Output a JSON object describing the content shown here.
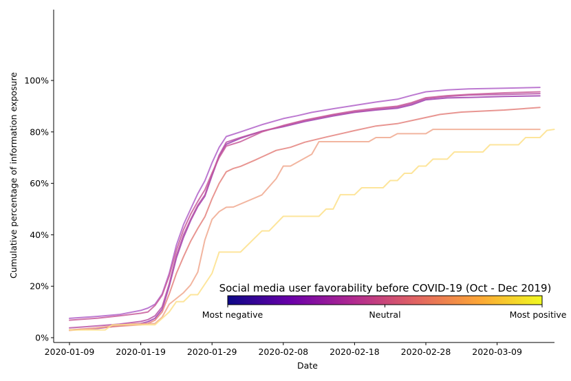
{
  "chart_data": {
    "type": "line",
    "xlabel": "Date",
    "ylabel": "Cumulative percentage of information exposure",
    "x_start": "2020-01-09",
    "x_ticks": [
      "2020-01-09",
      "2020-01-19",
      "2020-01-29",
      "2020-02-08",
      "2020-02-18",
      "2020-02-28",
      "2020-03-09"
    ],
    "y_ticks": [
      "0%",
      "20%",
      "40%",
      "60%",
      "80%",
      "100%"
    ],
    "ylim": [
      0,
      100
    ],
    "grid": false,
    "colorbar": {
      "title": "Social media user favorability before COVID-19 (Oct - Dec 2019)",
      "tick_labels": [
        "Most negative",
        "Neutral",
        "Most positive"
      ],
      "colormap": "plasma",
      "stops": [
        "#0d0887",
        "#6a00a8",
        "#b12a90",
        "#e16462",
        "#fca636",
        "#f0f921"
      ]
    },
    "series": [
      {
        "color": "#b062c9",
        "points": [
          [
            "2020-01-09",
            7.5
          ],
          [
            "2020-01-13",
            8.3
          ],
          [
            "2020-01-16",
            9.0
          ],
          [
            "2020-01-19",
            10.6
          ],
          [
            "2020-01-20",
            11.5
          ],
          [
            "2020-01-21",
            13.0
          ],
          [
            "2020-01-22",
            17.0
          ],
          [
            "2020-01-23",
            25.0
          ],
          [
            "2020-01-24",
            36.0
          ],
          [
            "2020-01-25",
            44.0
          ],
          [
            "2020-01-26",
            50.0
          ],
          [
            "2020-01-27",
            56.0
          ],
          [
            "2020-01-28",
            61.0
          ],
          [
            "2020-01-29",
            68.0
          ],
          [
            "2020-01-30",
            74.0
          ],
          [
            "2020-01-31",
            78.2
          ],
          [
            "2020-02-02",
            80.0
          ],
          [
            "2020-02-05",
            82.8
          ],
          [
            "2020-02-08",
            85.2
          ],
          [
            "2020-02-10",
            86.3
          ],
          [
            "2020-02-12",
            87.6
          ],
          [
            "2020-02-15",
            89.0
          ],
          [
            "2020-02-18",
            90.3
          ],
          [
            "2020-02-21",
            91.6
          ],
          [
            "2020-02-24",
            92.7
          ],
          [
            "2020-02-26",
            94.2
          ],
          [
            "2020-02-28",
            95.6
          ],
          [
            "2020-03-02",
            96.3
          ],
          [
            "2020-03-05",
            96.7
          ],
          [
            "2020-03-10",
            97.0
          ],
          [
            "2020-03-15",
            97.3
          ]
        ]
      },
      {
        "color": "#9e3fb0",
        "points": [
          [
            "2020-01-09",
            3.0
          ],
          [
            "2020-01-13",
            3.6
          ],
          [
            "2020-01-16",
            4.6
          ],
          [
            "2020-01-19",
            5.5
          ],
          [
            "2020-01-20",
            6.2
          ],
          [
            "2020-01-21",
            7.5
          ],
          [
            "2020-01-22",
            11.0
          ],
          [
            "2020-01-23",
            20.0
          ],
          [
            "2020-01-24",
            31.0
          ],
          [
            "2020-01-25",
            39.0
          ],
          [
            "2020-01-26",
            45.5
          ],
          [
            "2020-01-27",
            51.0
          ],
          [
            "2020-01-28",
            55.0
          ],
          [
            "2020-01-29",
            63.0
          ],
          [
            "2020-01-30",
            70.5
          ],
          [
            "2020-01-31",
            75.2
          ],
          [
            "2020-02-02",
            77.5
          ],
          [
            "2020-02-05",
            80.3
          ],
          [
            "2020-02-08",
            82.0
          ],
          [
            "2020-02-11",
            84.0
          ],
          [
            "2020-02-15",
            86.2
          ],
          [
            "2020-02-18",
            87.6
          ],
          [
            "2020-02-21",
            88.5
          ],
          [
            "2020-02-24",
            89.2
          ],
          [
            "2020-02-26",
            90.5
          ],
          [
            "2020-02-28",
            92.5
          ],
          [
            "2020-03-02",
            93.2
          ],
          [
            "2020-03-05",
            93.4
          ],
          [
            "2020-03-10",
            93.8
          ],
          [
            "2020-03-15",
            94.0
          ]
        ]
      },
      {
        "color": "#b854a6",
        "points": [
          [
            "2020-01-09",
            3.8
          ],
          [
            "2020-01-13",
            4.6
          ],
          [
            "2020-01-16",
            5.3
          ],
          [
            "2020-01-19",
            6.3
          ],
          [
            "2020-01-20",
            7.0
          ],
          [
            "2020-01-21",
            8.5
          ],
          [
            "2020-01-22",
            12.0
          ],
          [
            "2020-01-23",
            21.0
          ],
          [
            "2020-01-24",
            32.0
          ],
          [
            "2020-01-25",
            40.0
          ],
          [
            "2020-01-26",
            46.0
          ],
          [
            "2020-01-27",
            51.5
          ],
          [
            "2020-01-28",
            55.5
          ],
          [
            "2020-01-29",
            63.5
          ],
          [
            "2020-01-30",
            71.0
          ],
          [
            "2020-01-31",
            76.0
          ],
          [
            "2020-02-02",
            77.8
          ],
          [
            "2020-02-05",
            80.3
          ],
          [
            "2020-02-08",
            82.3
          ],
          [
            "2020-02-11",
            84.4
          ],
          [
            "2020-02-15",
            86.6
          ],
          [
            "2020-02-18",
            87.8
          ],
          [
            "2020-02-21",
            88.8
          ],
          [
            "2020-02-24",
            89.7
          ],
          [
            "2020-02-26",
            91.0
          ],
          [
            "2020-02-28",
            93.0
          ],
          [
            "2020-03-02",
            93.8
          ],
          [
            "2020-03-05",
            94.3
          ],
          [
            "2020-03-10",
            94.6
          ],
          [
            "2020-03-15",
            94.9
          ]
        ]
      },
      {
        "color": "#c85c9a",
        "points": [
          [
            "2020-01-09",
            6.8
          ],
          [
            "2020-01-13",
            7.6
          ],
          [
            "2020-01-16",
            8.5
          ],
          [
            "2020-01-19",
            9.5
          ],
          [
            "2020-01-20",
            10.0
          ],
          [
            "2020-01-21",
            12.5
          ],
          [
            "2020-01-22",
            16.5
          ],
          [
            "2020-01-23",
            24.0
          ],
          [
            "2020-01-24",
            34.0
          ],
          [
            "2020-01-25",
            42.0
          ],
          [
            "2020-01-26",
            48.0
          ],
          [
            "2020-01-27",
            53.0
          ],
          [
            "2020-01-28",
            57.5
          ],
          [
            "2020-01-29",
            64.0
          ],
          [
            "2020-01-30",
            70.0
          ],
          [
            "2020-01-31",
            74.5
          ],
          [
            "2020-02-02",
            76.2
          ],
          [
            "2020-02-05",
            80.0
          ],
          [
            "2020-02-08",
            82.5
          ],
          [
            "2020-02-11",
            84.6
          ],
          [
            "2020-02-15",
            86.8
          ],
          [
            "2020-02-18",
            88.2
          ],
          [
            "2020-02-21",
            89.2
          ],
          [
            "2020-02-24",
            90.0
          ],
          [
            "2020-02-26",
            91.4
          ],
          [
            "2020-02-28",
            93.3
          ],
          [
            "2020-03-02",
            94.1
          ],
          [
            "2020-03-05",
            94.6
          ],
          [
            "2020-03-10",
            95.2
          ],
          [
            "2020-03-15",
            95.6
          ]
        ]
      },
      {
        "color": "#e4827e",
        "points": [
          [
            "2020-01-09",
            3.0
          ],
          [
            "2020-01-13",
            3.8
          ],
          [
            "2020-01-16",
            4.5
          ],
          [
            "2020-01-19",
            5.0
          ],
          [
            "2020-01-20",
            5.5
          ],
          [
            "2020-01-21",
            6.8
          ],
          [
            "2020-01-22",
            10.0
          ],
          [
            "2020-01-23",
            17.0
          ],
          [
            "2020-01-24",
            25.0
          ],
          [
            "2020-01-25",
            31.5
          ],
          [
            "2020-01-26",
            37.5
          ],
          [
            "2020-01-27",
            42.5
          ],
          [
            "2020-01-28",
            47.0
          ],
          [
            "2020-01-29",
            54.0
          ],
          [
            "2020-01-30",
            60.0
          ],
          [
            "2020-01-31",
            64.5
          ],
          [
            "2020-02-01",
            65.8
          ],
          [
            "2020-02-02",
            66.6
          ],
          [
            "2020-02-04",
            69.0
          ],
          [
            "2020-02-07",
            72.8
          ],
          [
            "2020-02-09",
            74.0
          ],
          [
            "2020-02-11",
            76.0
          ],
          [
            "2020-02-14",
            78.0
          ],
          [
            "2020-02-18",
            80.5
          ],
          [
            "2020-02-21",
            82.3
          ],
          [
            "2020-02-24",
            83.2
          ],
          [
            "2020-02-27",
            85.0
          ],
          [
            "2020-03-01",
            86.8
          ],
          [
            "2020-03-04",
            87.7
          ],
          [
            "2020-03-10",
            88.5
          ],
          [
            "2020-03-15",
            89.5
          ]
        ]
      },
      {
        "color": "#f0a88e",
        "points": [
          [
            "2020-01-09",
            2.8
          ],
          [
            "2020-01-12",
            3.5
          ],
          [
            "2020-01-15",
            4.6
          ],
          [
            "2020-01-18",
            5.4
          ],
          [
            "2020-01-21",
            5.5
          ],
          [
            "2020-01-22",
            8.0
          ],
          [
            "2020-01-23",
            13.0
          ],
          [
            "2020-01-25",
            17.5
          ],
          [
            "2020-01-26",
            20.5
          ],
          [
            "2020-01-27",
            25.5
          ],
          [
            "2020-01-28",
            38.0
          ],
          [
            "2020-01-29",
            46.0
          ],
          [
            "2020-01-30",
            49.0
          ],
          [
            "2020-01-31",
            50.7
          ],
          [
            "2020-02-01",
            50.8
          ],
          [
            "2020-02-05",
            55.5
          ],
          [
            "2020-02-07",
            61.8
          ],
          [
            "2020-02-08",
            66.7
          ],
          [
            "2020-02-09",
            66.7
          ],
          [
            "2020-02-12",
            71.3
          ],
          [
            "2020-02-13",
            76.2
          ],
          [
            "2020-02-20",
            76.2
          ],
          [
            "2020-02-21",
            77.8
          ],
          [
            "2020-02-23",
            77.8
          ],
          [
            "2020-02-24",
            79.3
          ],
          [
            "2020-02-28",
            79.3
          ],
          [
            "2020-02-29",
            81.0
          ],
          [
            "2020-03-15",
            81.0
          ]
        ]
      },
      {
        "color": "#fde08a",
        "points": [
          [
            "2020-01-09",
            3.0
          ],
          [
            "2020-01-14",
            3.0
          ],
          [
            "2020-01-15",
            5.0
          ],
          [
            "2020-01-21",
            5.0
          ],
          [
            "2020-01-23",
            10.0
          ],
          [
            "2020-01-24",
            14.0
          ],
          [
            "2020-01-25",
            14.0
          ],
          [
            "2020-01-26",
            16.7
          ],
          [
            "2020-01-27",
            16.7
          ],
          [
            "2020-01-29",
            25.0
          ],
          [
            "2020-01-30",
            33.3
          ],
          [
            "2020-02-02",
            33.3
          ],
          [
            "2020-02-05",
            41.5
          ],
          [
            "2020-02-06",
            41.5
          ],
          [
            "2020-02-08",
            47.2
          ],
          [
            "2020-02-13",
            47.2
          ],
          [
            "2020-02-14",
            50.0
          ],
          [
            "2020-02-15",
            50.0
          ],
          [
            "2020-02-16",
            55.6
          ],
          [
            "2020-02-18",
            55.6
          ],
          [
            "2020-02-19",
            58.3
          ],
          [
            "2020-02-22",
            58.3
          ],
          [
            "2020-02-23",
            61.1
          ],
          [
            "2020-02-24",
            61.1
          ],
          [
            "2020-02-25",
            63.9
          ],
          [
            "2020-02-26",
            63.9
          ],
          [
            "2020-02-27",
            66.7
          ],
          [
            "2020-02-28",
            66.7
          ],
          [
            "2020-02-29",
            69.4
          ],
          [
            "2020-03-02",
            69.4
          ],
          [
            "2020-03-03",
            72.2
          ],
          [
            "2020-03-07",
            72.2
          ],
          [
            "2020-03-08",
            75.0
          ],
          [
            "2020-03-12",
            75.0
          ],
          [
            "2020-03-13",
            77.8
          ],
          [
            "2020-03-15",
            77.8
          ],
          [
            "2020-03-16",
            80.6
          ],
          [
            "2020-03-17",
            81.0
          ]
        ]
      }
    ]
  }
}
